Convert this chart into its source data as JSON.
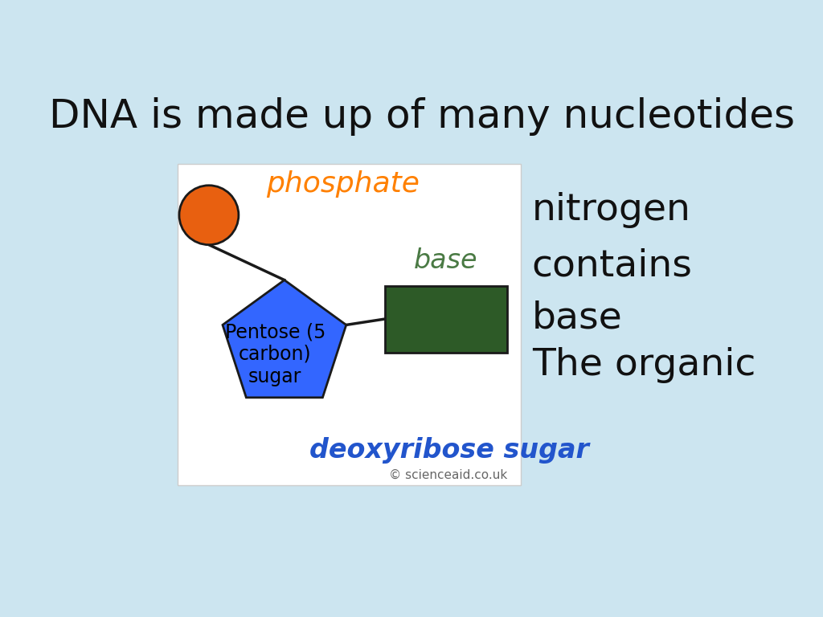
{
  "background_color": "#cce5f0",
  "diagram_bg": "#ffffff",
  "title": "DNA is made up of many nucleotides",
  "title_fontsize": 36,
  "title_color": "#111111",
  "phosphate_color": "#ff8000",
  "phosphate_label": "phosphate",
  "phosphate_fontsize": 26,
  "circle_color": "#e86010",
  "circle_edge": "#1a1a1a",
  "pentagon_color": "#3366ff",
  "pentagon_edge": "#1a1a1a",
  "pentagon_label": "Pentose (5\ncarbon)\nsugar",
  "pentagon_label_color": "#000000",
  "pentagon_label_fontsize": 17,
  "base_rect_color": "#2d5a27",
  "base_rect_edge": "#1a1a1a",
  "base_label": "base",
  "base_label_color": "#4a7a44",
  "base_label_fontsize": 24,
  "deoxy_label": "deoxyribose sugar",
  "deoxy_color": "#2255cc",
  "deoxy_fontsize": 24,
  "copyright_text": "© scienceaid.co.uk",
  "copyright_fontsize": 11,
  "copyright_color": "#666666",
  "side_text_line1": "The organic",
  "side_text_line2": "base",
  "side_text_line3": "contains",
  "side_text_line4": "nitrogen",
  "side_text_fontsize": 34,
  "side_text_color": "#111111"
}
